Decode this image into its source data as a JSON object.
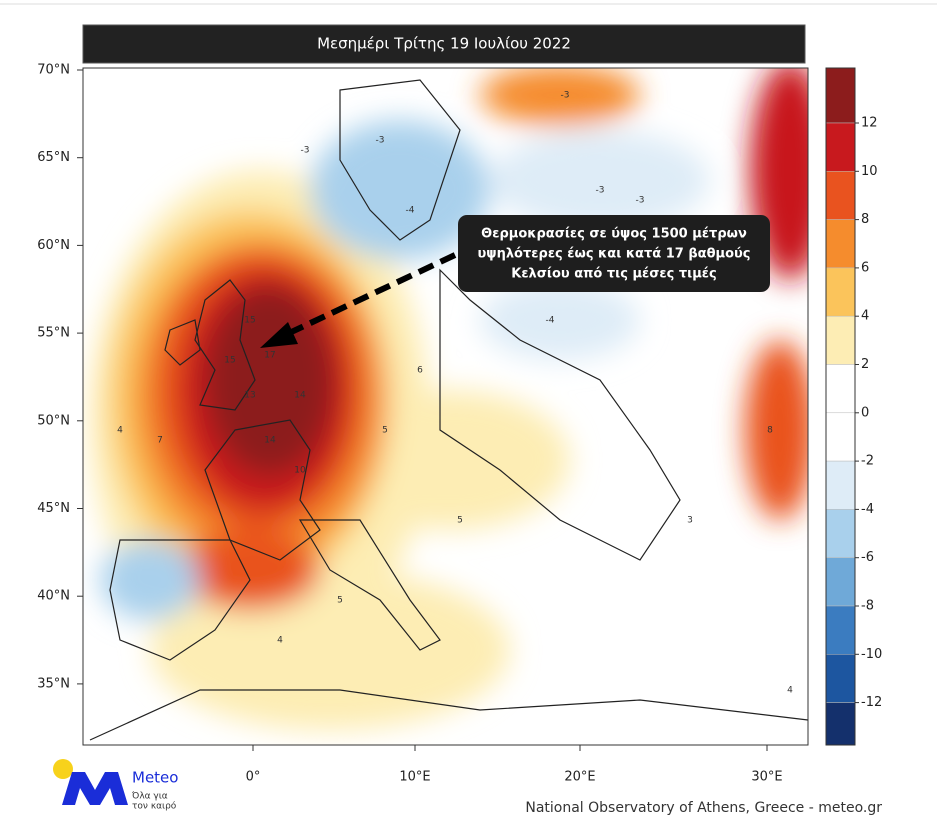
{
  "header": {
    "title": "Μεσημέρι Τρίτης 19 Ιουλίου 2022"
  },
  "callout": {
    "lines": [
      "Θερμοκρασίες σε ύψος 1500 μέτρων",
      "υψηλότερες έως και κατά 17 βαθμούς",
      "Κελσίου από τις μέσες τιμές"
    ]
  },
  "map": {
    "lat_labels": [
      "70°N",
      "65°N",
      "60°N",
      "55°N",
      "50°N",
      "45°N",
      "40°N",
      "35°N"
    ],
    "lon_labels": [
      "0°",
      "10°E",
      "20°E",
      "30°E"
    ],
    "contour_labels": [
      15,
      15,
      17,
      14,
      14,
      13,
      10,
      7,
      6,
      5,
      5,
      4,
      -3,
      -3,
      -4,
      -3,
      -4,
      -3,
      4,
      5,
      8,
      3,
      -3,
      4
    ]
  },
  "colorbar": {
    "ticks": [
      12,
      10,
      8,
      6,
      4,
      2,
      0,
      -2,
      -4,
      -6,
      -8,
      -10,
      -12
    ],
    "colors": [
      "#8c1c1c",
      "#c8191e",
      "#e9531f",
      "#f58c2d",
      "#fbc45b",
      "#fdedb4",
      "#ffffff",
      "#ffffff",
      "#deecf7",
      "#a9d0ec",
      "#6fa9d8",
      "#3b7cc0",
      "#1d56a0",
      "#14306c"
    ]
  },
  "logo": {
    "name": "Meteo",
    "tagline": [
      "Όλα για",
      "τον καιρό"
    ]
  },
  "footer": {
    "credit": "National Observatory of Athens, Greece - meteo.gr"
  }
}
